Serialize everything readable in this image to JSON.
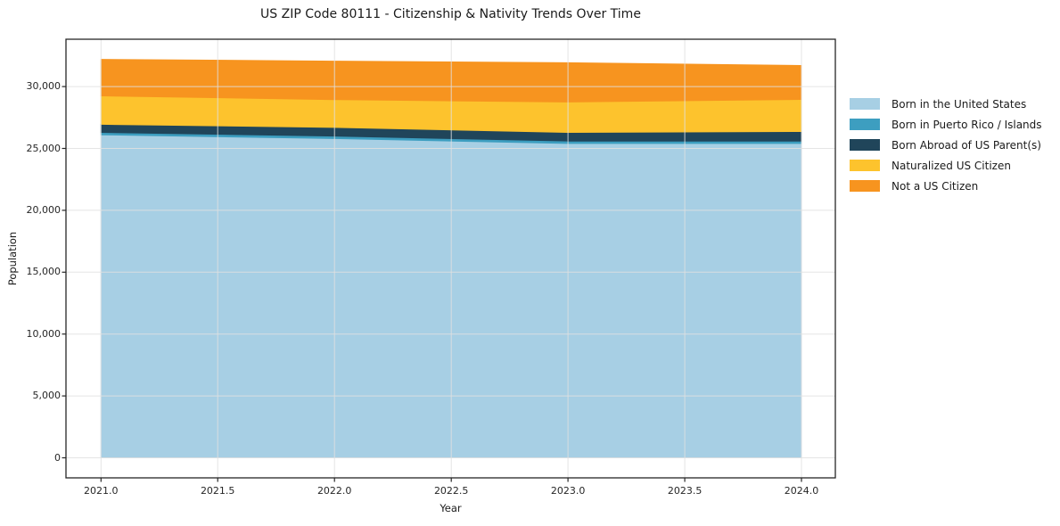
{
  "chart_data": {
    "type": "area",
    "stacked": true,
    "title": "US ZIP Code 80111 - Citizenship & Nativity Trends Over Time",
    "xlabel": "Year",
    "ylabel": "Population",
    "x": [
      2021,
      2022,
      2023,
      2024
    ],
    "series": [
      {
        "name": "Born in the United States",
        "color": "#a7cfe4",
        "values": [
          26100,
          25800,
          25400,
          25400
        ]
      },
      {
        "name": "Born in Puerto Rico / Islands",
        "color": "#3d9ec0",
        "values": [
          200,
          200,
          200,
          200
        ]
      },
      {
        "name": "Born Abroad of US Parent(s)",
        "color": "#20455a",
        "values": [
          650,
          700,
          700,
          770
        ]
      },
      {
        "name": "Naturalized US Citizen",
        "color": "#fdc32d",
        "values": [
          2300,
          2250,
          2450,
          2590
        ]
      },
      {
        "name": "Not a US Citizen",
        "color": "#f7941f",
        "values": [
          2950,
          3100,
          3170,
          2740
        ]
      }
    ],
    "totals": [
      32200,
      32050,
      31920,
      31700
    ],
    "xlim": [
      2020.85,
      2024.145
    ],
    "ylim": [
      -1620,
      33825
    ],
    "xticks": [
      2021.0,
      2021.5,
      2022.0,
      2022.5,
      2023.0,
      2023.5,
      2024.0
    ],
    "xtick_labels": [
      "2021.0",
      "2021.5",
      "2022.0",
      "2022.5",
      "2023.0",
      "2023.5",
      "2024.0"
    ],
    "yticks": [
      0,
      5000,
      10000,
      15000,
      20000,
      25000,
      30000
    ],
    "ytick_labels": [
      "0",
      "5,000",
      "10,000",
      "15,000",
      "20,000",
      "25,000",
      "30,000"
    ],
    "grid": true,
    "legend_position": "right-outside",
    "colors": {
      "background": "#ffffff",
      "grid": "#e0e0e0",
      "spine": "#262626",
      "text": "#1a1a1a"
    }
  }
}
